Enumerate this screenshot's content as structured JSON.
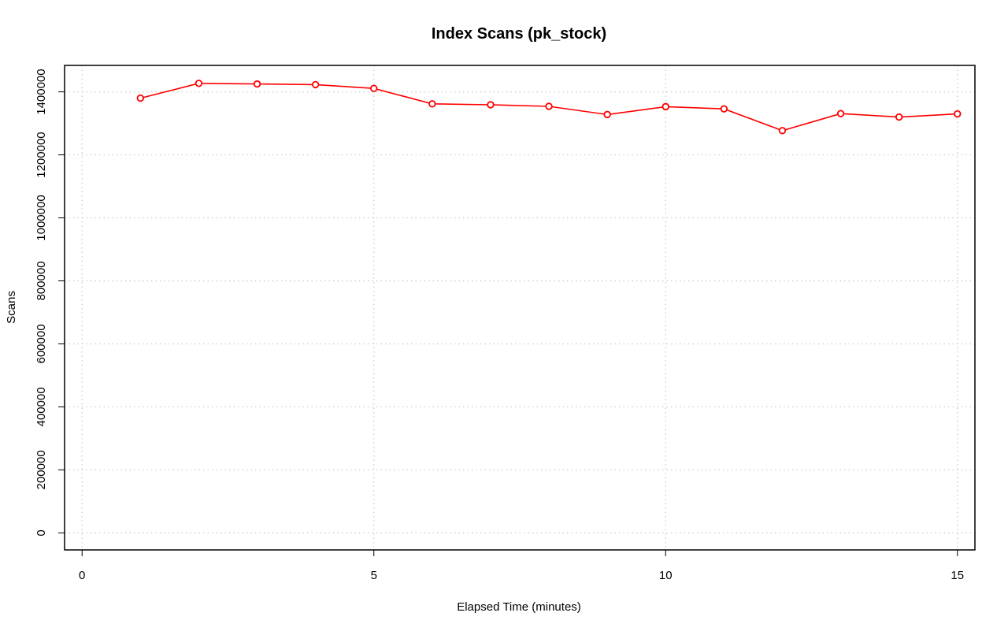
{
  "chart_data": {
    "type": "line",
    "title": "Index Scans (pk_stock)",
    "xlabel": "Elapsed Time (minutes)",
    "ylabel": "Scans",
    "xlim": [
      -0.3,
      15.3
    ],
    "ylim": [
      -54000,
      1484000
    ],
    "x_ticks": [
      0,
      5,
      10,
      15
    ],
    "y_ticks": [
      0,
      200000,
      400000,
      600000,
      800000,
      1000000,
      1200000,
      1400000
    ],
    "grid": true,
    "series": [
      {
        "color": "#ff0000",
        "marker": "open-circle",
        "x": [
          1,
          2,
          3,
          4,
          5,
          6,
          7,
          8,
          9,
          10,
          11,
          12,
          13,
          14,
          15
        ],
        "values": [
          1380000,
          1427000,
          1425000,
          1423000,
          1411000,
          1362000,
          1359000,
          1354000,
          1328000,
          1353000,
          1346000,
          1277000,
          1331000,
          1320000,
          1330000
        ]
      }
    ]
  }
}
